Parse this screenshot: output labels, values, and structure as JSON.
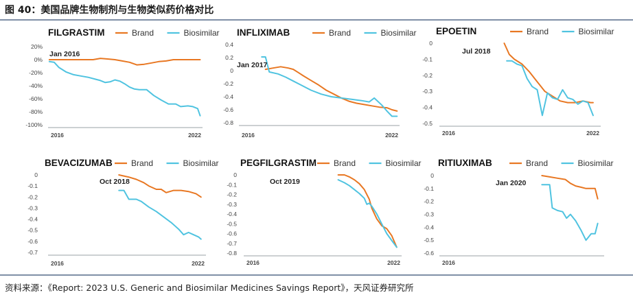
{
  "figure_title": "图 40：美国品牌生物制剂与生物类似药价格对比",
  "source": "资料来源：《Report: 2023 U.S. Generic and Biosimilar Medicines Savings Report》，天风证券研究所",
  "colors": {
    "brand": "#E87722",
    "biosimilar": "#4FC3E0",
    "axis": "#9aa0a6",
    "text": "#222222",
    "tick": "#444444"
  },
  "chart_data": [
    {
      "type": "line",
      "title": "FILGRASTIM",
      "legend": [
        "Brand",
        "Biosimilar"
      ],
      "annotation": "Jan 2016",
      "yticks": [
        "20%",
        "0%",
        "-20%",
        "-40%",
        "-60%",
        "-80%",
        "-100%"
      ],
      "ytick_values": [
        0.2,
        0,
        -0.2,
        -0.4,
        -0.6,
        -0.8,
        -1.0
      ],
      "ylim": [
        -1.0,
        0.2
      ],
      "xticks": [
        "2016",
        "2022"
      ],
      "xlim": [
        2015.95,
        2022.3
      ],
      "series": [
        {
          "name": "Brand",
          "x": [
            2016.0,
            2016.3,
            2016.6,
            2016.9,
            2017.2,
            2017.5,
            2017.8,
            2018.1,
            2018.4,
            2018.7,
            2019.0,
            2019.3,
            2019.6,
            2019.9,
            2020.2,
            2020.5,
            2020.8,
            2021.1,
            2021.4,
            2021.7,
            2022.0,
            2022.2
          ],
          "y": [
            0.0,
            0.0,
            0.0,
            0.0,
            0.0,
            0.0,
            0.0,
            0.02,
            0.01,
            0.0,
            -0.02,
            -0.04,
            -0.08,
            -0.07,
            -0.05,
            -0.03,
            -0.02,
            0.0,
            0.0,
            0.0,
            0.0,
            0.0
          ]
        },
        {
          "name": "Biosimilar",
          "x": [
            2016.0,
            2016.2,
            2016.4,
            2016.7,
            2017.0,
            2017.3,
            2017.6,
            2017.9,
            2018.1,
            2018.3,
            2018.5,
            2018.7,
            2018.9,
            2019.1,
            2019.3,
            2019.5,
            2019.7,
            2020.0,
            2020.3,
            2020.6,
            2020.9,
            2021.2,
            2021.4,
            2021.7,
            2021.9,
            2022.1,
            2022.2
          ],
          "y": [
            -0.03,
            -0.04,
            -0.12,
            -0.19,
            -0.23,
            -0.25,
            -0.27,
            -0.3,
            -0.32,
            -0.35,
            -0.34,
            -0.31,
            -0.33,
            -0.37,
            -0.42,
            -0.45,
            -0.46,
            -0.46,
            -0.55,
            -0.62,
            -0.68,
            -0.68,
            -0.72,
            -0.71,
            -0.72,
            -0.75,
            -0.86
          ]
        }
      ]
    },
    {
      "type": "line",
      "title": "INFLIXIMAB",
      "legend": [
        "Brand",
        "Biosimilar"
      ],
      "annotation": "Jan 2017",
      "yticks": [
        "0.4",
        "0.2",
        "0",
        "-0.2",
        "-0.4",
        "-0.6",
        "-0.8"
      ],
      "ytick_values": [
        0.4,
        0.2,
        0,
        -0.2,
        -0.4,
        -0.6,
        -0.8
      ],
      "ylim": [
        -0.8,
        0.4
      ],
      "xticks": [
        "2016",
        "2022"
      ],
      "xlim": [
        2015.95,
        2022.3
      ],
      "series": [
        {
          "name": "Brand",
          "x": [
            2017.0,
            2017.3,
            2017.6,
            2017.9,
            2018.1,
            2018.3,
            2018.5,
            2018.8,
            2019.1,
            2019.4,
            2019.7,
            2020.0,
            2020.3,
            2020.6,
            2020.9,
            2021.2,
            2021.5,
            2021.8,
            2022.0,
            2022.2
          ],
          "y": [
            0.02,
            0.04,
            0.06,
            0.04,
            0.02,
            -0.03,
            -0.08,
            -0.15,
            -0.22,
            -0.3,
            -0.36,
            -0.42,
            -0.47,
            -0.5,
            -0.52,
            -0.54,
            -0.56,
            -0.57,
            -0.6,
            -0.62
          ]
        },
        {
          "name": "Biosimilar",
          "x": [
            2016.85,
            2017.0,
            2017.15,
            2017.5,
            2017.8,
            2018.1,
            2018.4,
            2018.8,
            2019.2,
            2019.6,
            2020.0,
            2020.4,
            2020.8,
            2021.1,
            2021.3,
            2021.6,
            2021.8,
            2022.0,
            2022.2
          ],
          "y": [
            0.21,
            0.21,
            -0.02,
            -0.05,
            -0.1,
            -0.16,
            -0.22,
            -0.3,
            -0.36,
            -0.4,
            -0.42,
            -0.44,
            -0.46,
            -0.48,
            -0.42,
            -0.53,
            -0.62,
            -0.7,
            -0.7
          ]
        }
      ]
    },
    {
      "type": "line",
      "title": "EPOETIN",
      "legend": [
        "Brand",
        "Biosimilar"
      ],
      "annotation": "Jul 2018",
      "yticks": [
        "0",
        "-0.1",
        "-0.2",
        "-0.3",
        "-0.4",
        "-0.5"
      ],
      "ytick_values": [
        0,
        -0.1,
        -0.2,
        -0.3,
        -0.4,
        -0.5
      ],
      "ylim": [
        -0.5,
        0
      ],
      "xticks": [
        "2016",
        "2022"
      ],
      "xlim": [
        2015.95,
        2022.3
      ],
      "series": [
        {
          "name": "Brand",
          "x": [
            2018.5,
            2018.7,
            2018.9,
            2019.2,
            2019.5,
            2019.8,
            2020.1,
            2020.4,
            2020.7,
            2021.0,
            2021.3,
            2021.6,
            2021.9,
            2022.0
          ],
          "y": [
            0.0,
            -0.07,
            -0.1,
            -0.13,
            -0.18,
            -0.24,
            -0.3,
            -0.33,
            -0.36,
            -0.37,
            -0.37,
            -0.36,
            -0.37,
            -0.37
          ]
        },
        {
          "name": "Biosimilar",
          "x": [
            2018.6,
            2018.8,
            2019.0,
            2019.2,
            2019.4,
            2019.6,
            2019.8,
            2020.0,
            2020.2,
            2020.4,
            2020.6,
            2020.8,
            2021.0,
            2021.2,
            2021.4,
            2021.6,
            2021.8,
            2022.0
          ],
          "y": [
            -0.11,
            -0.11,
            -0.13,
            -0.14,
            -0.22,
            -0.27,
            -0.29,
            -0.45,
            -0.31,
            -0.34,
            -0.35,
            -0.29,
            -0.34,
            -0.35,
            -0.38,
            -0.36,
            -0.37,
            -0.45
          ]
        }
      ]
    },
    {
      "type": "line",
      "title": "BEVACIZUMAB",
      "legend": [
        "Brand",
        "Biosimilar"
      ],
      "annotation": "Oct 2018",
      "yticks": [
        "0",
        "-0.1",
        "-0.2",
        "-0.3",
        "-0.4",
        "-0.5",
        "-0.6",
        "-0.7"
      ],
      "ytick_values": [
        0,
        -0.1,
        -0.2,
        -0.3,
        -0.4,
        -0.5,
        -0.6,
        -0.7
      ],
      "ylim": [
        -0.7,
        0
      ],
      "xticks": [
        "2016",
        "2022"
      ],
      "xlim": [
        2015.95,
        2022.3
      ],
      "series": [
        {
          "name": "Brand",
          "x": [
            2018.8,
            2019.0,
            2019.2,
            2019.5,
            2019.8,
            2020.0,
            2020.3,
            2020.5,
            2020.7,
            2021.0,
            2021.3,
            2021.6,
            2021.9,
            2022.1
          ],
          "y": [
            0.0,
            -0.01,
            -0.02,
            -0.04,
            -0.07,
            -0.1,
            -0.13,
            -0.13,
            -0.16,
            -0.14,
            -0.14,
            -0.15,
            -0.17,
            -0.2
          ]
        },
        {
          "name": "Biosimilar",
          "x": [
            2018.8,
            2019.0,
            2019.2,
            2019.5,
            2019.7,
            2020.0,
            2020.3,
            2020.6,
            2020.9,
            2021.2,
            2021.4,
            2021.6,
            2021.8,
            2022.0,
            2022.1
          ],
          "y": [
            -0.14,
            -0.14,
            -0.22,
            -0.22,
            -0.24,
            -0.29,
            -0.33,
            -0.38,
            -0.43,
            -0.49,
            -0.54,
            -0.52,
            -0.54,
            -0.56,
            -0.58
          ]
        }
      ]
    },
    {
      "type": "line",
      "title": "PEGFILGRASTIM",
      "legend": [
        "Brand",
        "Biosimilar"
      ],
      "annotation": "Oct 2019",
      "yticks": [
        "0",
        "-0.1",
        "-0.2",
        "-0.3",
        "-0.4",
        "-0.5",
        "-0.6",
        "-0.7",
        "-0.8"
      ],
      "ytick_values": [
        0,
        -0.1,
        -0.2,
        -0.3,
        -0.4,
        -0.5,
        -0.6,
        -0.7,
        -0.8
      ],
      "ylim": [
        -0.8,
        0
      ],
      "xticks": [
        "2016",
        "2022"
      ],
      "xlim": [
        2015.95,
        2022.3
      ],
      "series": [
        {
          "name": "Brand",
          "x": [
            2019.75,
            2020.0,
            2020.2,
            2020.4,
            2020.6,
            2020.8,
            2021.0,
            2021.1,
            2021.3,
            2021.5,
            2021.7,
            2021.9,
            2022.1
          ],
          "y": [
            0.0,
            0.0,
            -0.02,
            -0.05,
            -0.09,
            -0.15,
            -0.25,
            -0.34,
            -0.45,
            -0.52,
            -0.55,
            -0.62,
            -0.74
          ]
        },
        {
          "name": "Biosimilar",
          "x": [
            2019.75,
            2020.0,
            2020.2,
            2020.4,
            2020.6,
            2020.8,
            2020.9,
            2021.0,
            2021.1,
            2021.3,
            2021.5,
            2021.7,
            2021.9,
            2022.1
          ],
          "y": [
            -0.05,
            -0.08,
            -0.11,
            -0.15,
            -0.19,
            -0.24,
            -0.3,
            -0.29,
            -0.32,
            -0.4,
            -0.5,
            -0.6,
            -0.67,
            -0.74
          ]
        }
      ]
    },
    {
      "type": "line",
      "title": "RITIUXIMAB",
      "legend": [
        "Brand",
        "Biosimilar"
      ],
      "annotation": "Jan 2020",
      "yticks": [
        "0",
        "-0.1",
        "-0.2",
        "-0.3",
        "-0.4",
        "-0.5",
        "-0.6"
      ],
      "ytick_values": [
        0,
        -0.1,
        -0.2,
        -0.3,
        -0.4,
        -0.5,
        -0.6
      ],
      "ylim": [
        -0.6,
        0
      ],
      "xticks": [
        "2016"
      ],
      "xlim": [
        2015.95,
        2022.3
      ],
      "series": [
        {
          "name": "Brand",
          "x": [
            2019.9,
            2020.2,
            2020.5,
            2020.8,
            2021.0,
            2021.2,
            2021.4,
            2021.6,
            2021.8,
            2021.95,
            2022.05
          ],
          "y": [
            0.0,
            -0.01,
            -0.02,
            -0.03,
            -0.06,
            -0.08,
            -0.09,
            -0.1,
            -0.1,
            -0.1,
            -0.18
          ]
        },
        {
          "name": "Biosimilar",
          "x": [
            2019.9,
            2020.2,
            2020.3,
            2020.5,
            2020.7,
            2020.85,
            2021.0,
            2021.2,
            2021.4,
            2021.6,
            2021.8,
            2021.95,
            2022.05
          ],
          "y": [
            -0.07,
            -0.07,
            -0.25,
            -0.27,
            -0.28,
            -0.33,
            -0.3,
            -0.35,
            -0.42,
            -0.5,
            -0.45,
            -0.45,
            -0.37
          ]
        }
      ]
    }
  ]
}
